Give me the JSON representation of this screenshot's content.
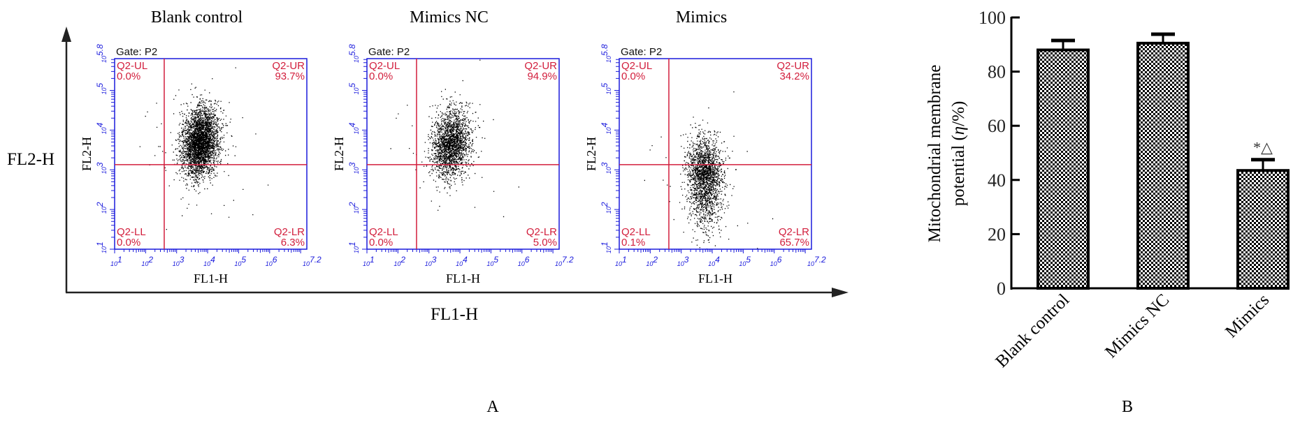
{
  "panel_a_label": "A",
  "panel_b_label": "B",
  "outer_axes": {
    "y_label": "FL2-H",
    "x_label": "FL1-H"
  },
  "colors": {
    "plot_axis": "#1a1adc",
    "gate": "#d21e3c",
    "dots": "#000000",
    "bar_stroke": "#000000"
  },
  "chart_data": [
    {
      "type": "scatter",
      "title": "Blank control",
      "gate_label": "Gate: P2",
      "xlabel": "FL1-H",
      "ylabel": "FL2-H",
      "x_scale": "log10",
      "y_scale": "log10",
      "xlim_log": [
        1,
        7.2
      ],
      "ylim_log": [
        1,
        5.8
      ],
      "x_ticks": [
        "1",
        "2",
        "3",
        "4",
        "5",
        "6",
        "7.2"
      ],
      "y_ticks": [
        "1",
        "2",
        "3",
        "4",
        "5",
        "5.8"
      ],
      "tick_base": "10",
      "gate_log": {
        "x": 2.6,
        "y": 3.13
      },
      "quadrants": {
        "UL": {
          "name": "Q2-UL",
          "value": "0.0%"
        },
        "UR": {
          "name": "Q2-UR",
          "value": "93.7%"
        },
        "LL": {
          "name": "Q2-LL",
          "value": "0.0%"
        },
        "LR": {
          "name": "Q2-LR",
          "value": "6.3%"
        }
      },
      "cluster": {
        "cx": 3.75,
        "cy": 3.7,
        "sx": 0.28,
        "sy": 0.42,
        "n": 4200,
        "skew": 0.15
      }
    },
    {
      "type": "scatter",
      "title": "Mimics NC",
      "gate_label": "Gate: P2",
      "xlabel": "FL1-H",
      "ylabel": "FL2-H",
      "x_scale": "log10",
      "y_scale": "log10",
      "xlim_log": [
        1,
        7.2
      ],
      "ylim_log": [
        1,
        5.8
      ],
      "x_ticks": [
        "1",
        "2",
        "3",
        "4",
        "5",
        "6",
        "7.2"
      ],
      "y_ticks": [
        "1",
        "2",
        "3",
        "4",
        "5",
        "5.8"
      ],
      "tick_base": "10",
      "gate_log": {
        "x": 2.6,
        "y": 3.13
      },
      "quadrants": {
        "UL": {
          "name": "Q2-UL",
          "value": "0.0%"
        },
        "UR": {
          "name": "Q2-UR",
          "value": "94.9%"
        },
        "LL": {
          "name": "Q2-LL",
          "value": "0.0%"
        },
        "LR": {
          "name": "Q2-LR",
          "value": "5.0%"
        }
      },
      "cluster": {
        "cx": 3.7,
        "cy": 3.65,
        "sx": 0.3,
        "sy": 0.42,
        "n": 4200,
        "skew": 0.12
      }
    },
    {
      "type": "scatter",
      "title": "Mimics",
      "gate_label": "Gate: P2",
      "xlabel": "FL1-H",
      "ylabel": "FL2-H",
      "x_scale": "log10",
      "y_scale": "log10",
      "xlim_log": [
        1,
        7.2
      ],
      "ylim_log": [
        1,
        5.8
      ],
      "x_ticks": [
        "1",
        "2",
        "3",
        "4",
        "5",
        "6",
        "7.2"
      ],
      "y_ticks": [
        "1",
        "2",
        "3",
        "4",
        "5",
        "5.8"
      ],
      "tick_base": "10",
      "gate_log": {
        "x": 2.6,
        "y": 3.13
      },
      "quadrants": {
        "UL": {
          "name": "Q2-UL",
          "value": "0.0%"
        },
        "UR": {
          "name": "Q2-UR",
          "value": "34.2%"
        },
        "LL": {
          "name": "Q2-LL",
          "value": "0.1%"
        },
        "LR": {
          "name": "Q2-LR",
          "value": "65.7%"
        }
      },
      "cluster": {
        "cx": 3.75,
        "cy": 2.85,
        "sx": 0.28,
        "sy": 0.45,
        "n": 4200,
        "skew": -0.1
      }
    },
    {
      "type": "bar",
      "categories": [
        "Blank control",
        "Mimics NC",
        "Mimics"
      ],
      "values": [
        88,
        90.5,
        43.5
      ],
      "errors": [
        3.5,
        3.3,
        4.0
      ],
      "annotations": [
        "",
        "",
        "*△"
      ],
      "ylabel_line1": "Mitochondrial membrane",
      "ylabel_line2_prefix": "potential (",
      "ylabel_symbol": "η",
      "ylabel_line2_suffix": "/%)",
      "ylim": [
        0,
        100
      ],
      "y_ticks": [
        "0",
        "20",
        "40",
        "60",
        "80",
        "100"
      ],
      "pattern": "checkerboard"
    }
  ]
}
